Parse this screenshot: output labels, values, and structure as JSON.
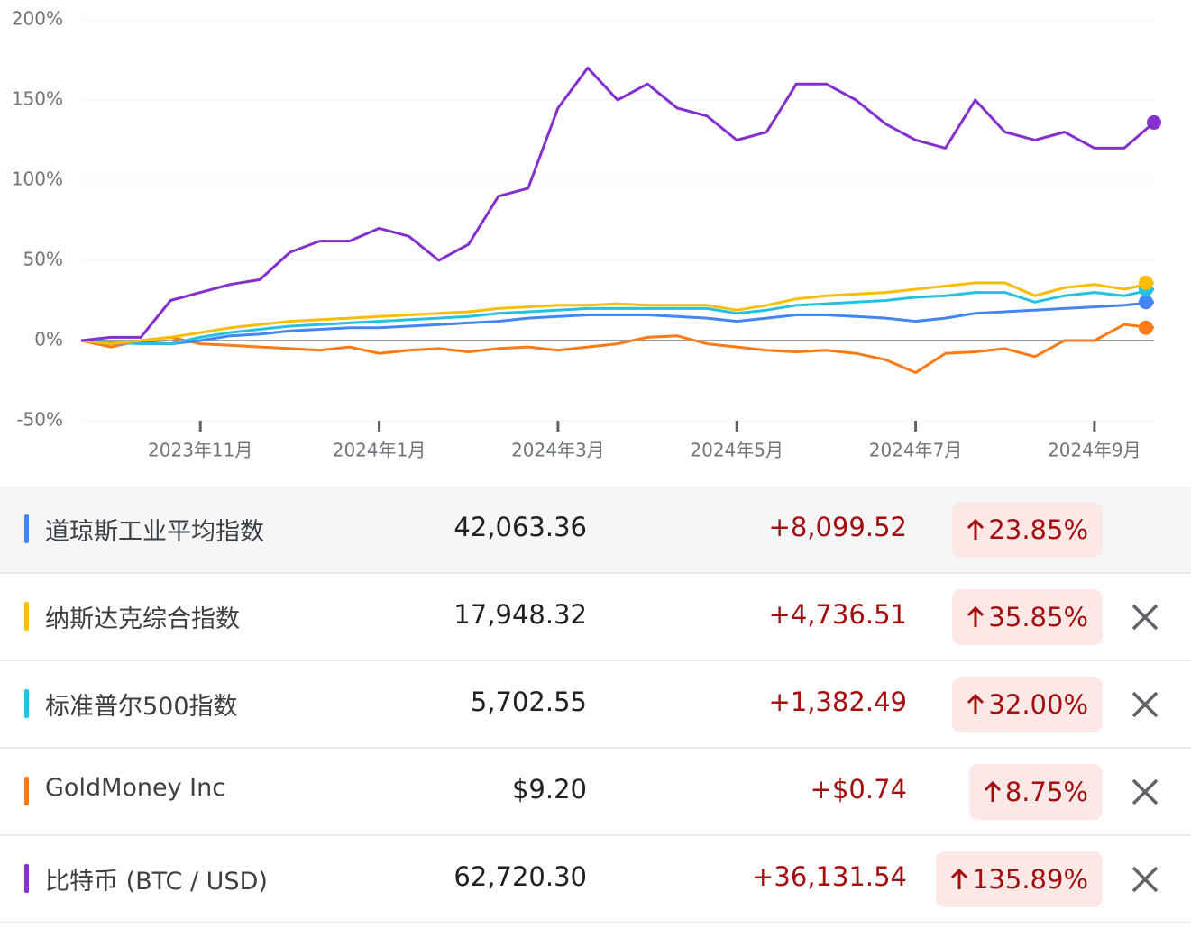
{
  "chart_data": {
    "type": "line",
    "categories": [
      null,
      null,
      null,
      null,
      "2023年11月",
      null,
      null,
      null,
      null,
      null,
      "2024年1月",
      null,
      null,
      null,
      null,
      null,
      "2024年3月",
      null,
      null,
      null,
      null,
      null,
      "2024年5月",
      null,
      null,
      null,
      null,
      null,
      "2024年7月",
      null,
      null,
      null,
      null,
      null,
      "2024年9月",
      null,
      null
    ],
    "ylim": [
      -50,
      200
    ],
    "yticks": [
      {
        "value": -50,
        "label": "-50%"
      },
      {
        "value": 0,
        "label": "0%"
      },
      {
        "value": 50,
        "label": "50%"
      },
      {
        "value": 100,
        "label": "100%"
      },
      {
        "value": 150,
        "label": "150%"
      },
      {
        "value": 200,
        "label": "200%"
      }
    ],
    "grid": true,
    "series": [
      {
        "name": "道琼斯工业平均指数",
        "color": "#4285f4",
        "values": [
          0,
          -2,
          -1,
          -2,
          0,
          3,
          4,
          6,
          7,
          8,
          8,
          9,
          10,
          11,
          12,
          14,
          15,
          16,
          16,
          16,
          15,
          14,
          12,
          14,
          16,
          16,
          15,
          14,
          12,
          14,
          17,
          18,
          19,
          20,
          21,
          22,
          24
        ]
      },
      {
        "name": "纳斯达克综合指数",
        "color": "#fbbc04",
        "values": [
          0,
          -2,
          0,
          2,
          5,
          8,
          10,
          12,
          13,
          14,
          15,
          16,
          17,
          18,
          20,
          21,
          22,
          22,
          23,
          22,
          22,
          22,
          19,
          22,
          26,
          28,
          29,
          30,
          32,
          34,
          36,
          36,
          28,
          33,
          35,
          32,
          36
        ]
      },
      {
        "name": "标准普尔500指数",
        "color": "#24c1e0",
        "values": [
          0,
          -1,
          -2,
          -2,
          2,
          5,
          7,
          9,
          10,
          11,
          12,
          13,
          14,
          15,
          17,
          18,
          19,
          20,
          20,
          20,
          20,
          20,
          17,
          19,
          22,
          23,
          24,
          25,
          27,
          28,
          30,
          30,
          24,
          28,
          30,
          28,
          32
        ]
      },
      {
        "name": "GoldMoney Inc",
        "color": "#fa7b17",
        "values": [
          0,
          -4,
          0,
          2,
          -2,
          -3,
          -4,
          -5,
          -6,
          -4,
          -8,
          -6,
          -5,
          -7,
          -5,
          -4,
          -6,
          -4,
          -2,
          2,
          3,
          -2,
          -4,
          -6,
          -7,
          -6,
          -8,
          -12,
          -20,
          -8,
          -7,
          -5,
          -10,
          0,
          0,
          10,
          8
        ]
      },
      {
        "name": "比特币 (BTC / USD)",
        "color": "#8430ce",
        "values": [
          0,
          2,
          2,
          25,
          30,
          35,
          38,
          55,
          62,
          62,
          70,
          65,
          50,
          60,
          90,
          95,
          145,
          170,
          150,
          160,
          145,
          140,
          125,
          130,
          160,
          160,
          150,
          135,
          125,
          120,
          150,
          130,
          125,
          130,
          120,
          120,
          136
        ]
      }
    ]
  },
  "table": {
    "rows": [
      {
        "price": "42,063.36",
        "change": "+8,099.52",
        "percent": "23.85%"
      },
      {
        "price": "17,948.32",
        "change": "+4,736.51",
        "percent": "35.85%"
      },
      {
        "price": "5,702.55",
        "change": "+1,382.49",
        "percent": "32.00%"
      },
      {
        "price": "$9.20",
        "change": "+$0.74",
        "percent": "8.75%"
      },
      {
        "price": "62,720.30",
        "change": "+36,131.54",
        "percent": "135.89%"
      }
    ]
  }
}
